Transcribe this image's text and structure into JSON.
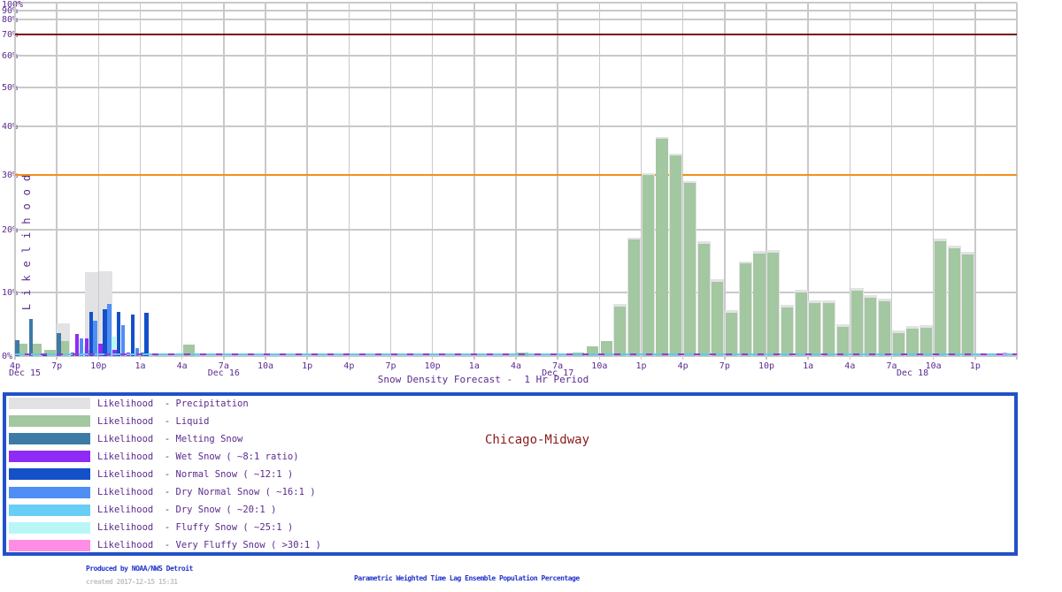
{
  "page": {
    "site_label": "Chicago-Midway",
    "footer": {
      "produced_by": "Produced by NOAA/NWS Detroit",
      "created": "created 2017-12-15 15:31",
      "method": "Parametric Weighted Time Lag Ensemble Population Percentage"
    }
  },
  "colors": {
    "axis_text": "#5b2b8e",
    "grid": "#c9c9c9",
    "ref_line_70": "#7a1012",
    "ref_line_30": "#f0901e",
    "legend_border": "#2251c8",
    "site_label": "#8b1b1b",
    "footer_blue": "#2233cc",
    "footer_gray": "#c2c2c2",
    "zero_dash_cyan": "#62c9ef",
    "zero_dash_purple": "#9a3ad2"
  },
  "series": [
    {
      "key": "precip",
      "label": "Likelihood  - Precipitation",
      "color": "#e2e2e4",
      "style": "wide"
    },
    {
      "key": "liquid",
      "label": "Likelihood  - Liquid",
      "color": "#a3c7a1",
      "style": "wide"
    },
    {
      "key": "melting",
      "label": "Likelihood  - Melting Snow",
      "color": "#3e7aa6",
      "style": "thin"
    },
    {
      "key": "wet",
      "label": "Likelihood  - Wet Snow ( ~8:1 ratio)",
      "color": "#8f2bf5",
      "style": "thin"
    },
    {
      "key": "normal",
      "label": "Likelihood  - Normal Snow ( ~12:1 )",
      "color": "#1450c8",
      "style": "thin"
    },
    {
      "key": "dryNormal",
      "label": "Likelihood  - Dry Normal Snow ( ~16:1 )",
      "color": "#4e8ef5",
      "style": "thin"
    },
    {
      "key": "dry",
      "label": "Likelihood  - Dry Snow ( ~20:1 )",
      "color": "#68cef5",
      "style": "thin"
    },
    {
      "key": "fluffy",
      "label": "Likelihood  - Fluffy Snow ( ~25:1 )",
      "color": "#b9f6f6",
      "style": "thin"
    },
    {
      "key": "veryFluffy",
      "label": "Likelihood  - Very Fluffy Snow ( >30:1 )",
      "color": "#ff8ce5",
      "style": "thin"
    }
  ],
  "chart_data": {
    "type": "bar",
    "title": "Snow Density Forecast -  1 Hr Period",
    "ylabel": "Likelihood",
    "ylim": [
      0,
      100
    ],
    "y_scale": "nonlinear (compressed toward 100%)",
    "y_ticks": [
      0,
      10,
      20,
      30,
      40,
      50,
      60,
      70,
      80,
      90,
      100
    ],
    "ref_lines": [
      {
        "value": 70,
        "color_key": "ref_line_70"
      },
      {
        "value": 30,
        "color_key": "ref_line_30"
      }
    ],
    "grid": true,
    "x_axis_start": "Dec 15 4:00 PM",
    "x_tick_interval_hours": 3,
    "hour_tick_labels": [
      "4p",
      "7p",
      "10p",
      "1a",
      "4a",
      "7a",
      "10a",
      "1p",
      "4p",
      "7p",
      "10p",
      "1a",
      "4a",
      "7a",
      "10a",
      "1p",
      "4p",
      "7p",
      "10p",
      "1a",
      "4a",
      "7a",
      "10a",
      "1p"
    ],
    "date_labels": [
      {
        "label": "Dec 15",
        "hour": 0.7
      },
      {
        "label": "Dec 16",
        "hour": 15
      },
      {
        "label": "Dec 17",
        "hour": 39
      },
      {
        "label": "Dec 18",
        "hour": 64.5
      }
    ],
    "bars": [
      {
        "h": 0,
        "liquid": 2.0,
        "melting": 2.5
      },
      {
        "h": 1,
        "liquid": 1.9,
        "melting": 5.8
      },
      {
        "h": 2,
        "liquid": 1.0,
        "normal": 0.4
      },
      {
        "h": 3,
        "precip": 5.1,
        "liquid": 2.3,
        "melting": 3.6
      },
      {
        "h": 4,
        "melting": 0.6,
        "wet": 3.5,
        "dryNormal": 2.8,
        "fluffy": 1.6
      },
      {
        "h": 5,
        "precip": 13.2,
        "liquid": 1.0,
        "wet": 2.8,
        "normal": 6.9,
        "dryNormal": 5.6,
        "fluffy": 1.1
      },
      {
        "h": 6,
        "precip": 13.4,
        "liquid": 1.0,
        "wet": 1.9,
        "normal": 7.4,
        "dryNormal": 8.2,
        "fluffy": 3.1
      },
      {
        "h": 7,
        "wet": 1.0,
        "normal": 6.9,
        "dryNormal": 4.9
      },
      {
        "h": 8,
        "wet": 0.6,
        "normal": 6.5,
        "dryNormal": 1.2
      },
      {
        "h": 9,
        "melting": 0.5,
        "normal": 6.8
      },
      {
        "h": 10,
        "dry": 0.4
      },
      {
        "h": 12,
        "liquid": 1.8
      },
      {
        "h": 36,
        "liquid": 0.5
      },
      {
        "h": 40,
        "liquid": 0.6
      },
      {
        "h": 41,
        "liquid": 1.5
      },
      {
        "h": 42,
        "liquid": 2.3
      },
      {
        "h": 43,
        "precip": 8.2,
        "liquid": 7.8
      },
      {
        "h": 44,
        "precip": 18.8,
        "liquid": 18.4
      },
      {
        "h": 45,
        "precip": 30.4,
        "liquid": 30.0
      },
      {
        "h": 46,
        "precip": 37.9,
        "liquid": 37.5
      },
      {
        "h": 47,
        "precip": 34.4,
        "liquid": 34.0
      },
      {
        "h": 48,
        "precip": 28.9,
        "liquid": 28.5
      },
      {
        "h": 49,
        "precip": 18.2,
        "liquid": 17.8
      },
      {
        "h": 50,
        "precip": 12.1,
        "liquid": 11.7
      },
      {
        "h": 51,
        "precip": 7.2,
        "liquid": 6.8
      },
      {
        "h": 52,
        "precip": 15.0,
        "liquid": 14.6
      },
      {
        "h": 53,
        "precip": 16.6,
        "liquid": 16.2
      },
      {
        "h": 54,
        "precip": 16.8,
        "liquid": 16.4
      },
      {
        "h": 55,
        "precip": 8.1,
        "liquid": 7.7
      },
      {
        "h": 56,
        "precip": 10.4,
        "liquid": 10.0
      },
      {
        "h": 57,
        "precip": 8.7,
        "liquid": 8.3
      },
      {
        "h": 58,
        "precip": 8.7,
        "liquid": 8.3
      },
      {
        "h": 59,
        "precip": 5.0,
        "liquid": 4.6
      },
      {
        "h": 60,
        "precip": 10.7,
        "liquid": 10.3
      },
      {
        "h": 61,
        "precip": 9.6,
        "liquid": 9.2
      },
      {
        "h": 62,
        "precip": 9.0,
        "liquid": 8.6
      },
      {
        "h": 63,
        "precip": 4.0,
        "liquid": 3.6
      },
      {
        "h": 64,
        "precip": 4.7,
        "liquid": 4.3
      },
      {
        "h": 65,
        "precip": 4.9,
        "liquid": 4.5
      },
      {
        "h": 66,
        "precip": 18.6,
        "liquid": 18.2
      },
      {
        "h": 67,
        "precip": 17.4,
        "liquid": 17.0
      },
      {
        "h": 68,
        "precip": 16.5,
        "liquid": 16.1
      },
      {
        "h": 71,
        "veryFluffy": 0.5
      }
    ]
  }
}
